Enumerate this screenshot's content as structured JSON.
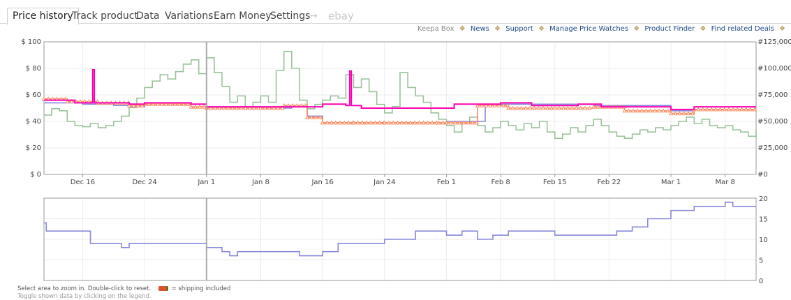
{
  "tabs": [
    {
      "label": "Price history",
      "active": true
    },
    {
      "label": "Track product"
    },
    {
      "label": "Data"
    },
    {
      "label": "Variations"
    },
    {
      "label": "Earn Money"
    },
    {
      "label": "Settings"
    },
    {
      "label": "→"
    },
    {
      "label": "ebay"
    }
  ],
  "links": {
    "keepa_box": "Keepa Box",
    "items": [
      "News",
      "Support",
      "Manage Price Watches",
      "Product Finder",
      "Find related Deals"
    ],
    "separator": "❖"
  },
  "footer": {
    "hint": "Select area to zoom in. Double-click to reset.",
    "shipping": "= shipping included",
    "hint2": "Toggle shown data by clicking on the legend."
  },
  "colors": {
    "amazon": "#e34e1a",
    "new": "#8888dd",
    "salesrank": "#8fbc8f",
    "new_3rd_party": "#ff00b4",
    "offer_count": "#8888dd",
    "grid": "#ececec",
    "axis": "#999999"
  },
  "chart_data": [
    {
      "type": "line",
      "title": "",
      "x_type": "date",
      "x_range": [
        "2023-12-11",
        "2024-03-12"
      ],
      "x_ticks": [
        "Dec 16",
        "Dec 24",
        "Jan 1",
        "Jan 8",
        "Jan 16",
        "Jan 24",
        "Feb 1",
        "Feb 8",
        "Feb 15",
        "Feb 22",
        "Mar 1",
        "Mar 8"
      ],
      "x_tick_dates": [
        "2023-12-16",
        "2023-12-24",
        "2024-01-01",
        "2024-01-08",
        "2024-01-16",
        "2024-01-24",
        "2024-02-01",
        "2024-02-08",
        "2024-02-15",
        "2024-02-22",
        "2024-03-01",
        "2024-03-08"
      ],
      "y_left": {
        "range": [
          0,
          100
        ],
        "ticks": [
          "$ 0",
          "$ 20",
          "$ 40",
          "$ 60",
          "$ 80",
          "$ 100"
        ]
      },
      "y_right": {
        "range": [
          0,
          125000
        ],
        "ticks": [
          "#0",
          "#25,000",
          "#50,000",
          "#75,000",
          "#100,000",
          "#125,000"
        ]
      },
      "marker_date": "2024-01-01",
      "grid": true,
      "series": [
        {
          "key": "salesrank",
          "axis": "right",
          "color": "#8fbc8f",
          "points": [
            [
              "2023-12-11",
              56000
            ],
            [
              "2023-12-12",
              62000
            ],
            [
              "2023-12-13",
              60000
            ],
            [
              "2023-12-14",
              50000
            ],
            [
              "2023-12-15",
              46000
            ],
            [
              "2023-12-16",
              45000
            ],
            [
              "2023-12-17",
              48000
            ],
            [
              "2023-12-18",
              44000
            ],
            [
              "2023-12-19",
              46000
            ],
            [
              "2023-12-20",
              50000
            ],
            [
              "2023-12-21",
              55000
            ],
            [
              "2023-12-22",
              63000
            ],
            [
              "2023-12-23",
              72000
            ],
            [
              "2023-12-24",
              82000
            ],
            [
              "2023-12-25",
              88000
            ],
            [
              "2023-12-26",
              94000
            ],
            [
              "2023-12-27",
              90000
            ],
            [
              "2023-12-28",
              97000
            ],
            [
              "2023-12-29",
              104000
            ],
            [
              "2023-12-30",
              108000
            ],
            [
              "2023-12-31",
              95000
            ],
            [
              "2024-01-01",
              110000
            ],
            [
              "2024-01-02",
              96000
            ],
            [
              "2024-01-03",
              83000
            ],
            [
              "2024-01-04",
              68000
            ],
            [
              "2024-01-05",
              74000
            ],
            [
              "2024-01-06",
              63000
            ],
            [
              "2024-01-07",
              68000
            ],
            [
              "2024-01-08",
              74000
            ],
            [
              "2024-01-09",
              68000
            ],
            [
              "2024-01-10",
              98000
            ],
            [
              "2024-01-11",
              116000
            ],
            [
              "2024-01-12",
              100000
            ],
            [
              "2024-01-13",
              70000
            ],
            [
              "2024-01-14",
              62000
            ],
            [
              "2024-01-15",
              66000
            ],
            [
              "2024-01-16",
              70000
            ],
            [
              "2024-01-17",
              74000
            ],
            [
              "2024-01-18",
              72000
            ],
            [
              "2024-01-19",
              94000
            ],
            [
              "2024-01-20",
              82000
            ],
            [
              "2024-01-21",
              90000
            ],
            [
              "2024-01-22",
              78000
            ],
            [
              "2024-01-23",
              66000
            ],
            [
              "2024-01-24",
              58000
            ],
            [
              "2024-01-25",
              64000
            ],
            [
              "2024-01-26",
              96000
            ],
            [
              "2024-01-27",
              82000
            ],
            [
              "2024-01-28",
              74000
            ],
            [
              "2024-01-29",
              68000
            ],
            [
              "2024-01-30",
              58000
            ],
            [
              "2024-01-31",
              52000
            ],
            [
              "2024-02-01",
              46000
            ],
            [
              "2024-02-02",
              40000
            ],
            [
              "2024-02-03",
              48000
            ],
            [
              "2024-02-04",
              54000
            ],
            [
              "2024-02-05",
              46000
            ],
            [
              "2024-02-06",
              40000
            ],
            [
              "2024-02-07",
              44000
            ],
            [
              "2024-02-08",
              50000
            ],
            [
              "2024-02-09",
              46000
            ],
            [
              "2024-02-10",
              42000
            ],
            [
              "2024-02-11",
              48000
            ],
            [
              "2024-02-12",
              44000
            ],
            [
              "2024-02-13",
              50000
            ],
            [
              "2024-02-14",
              40000
            ],
            [
              "2024-02-15",
              34000
            ],
            [
              "2024-02-16",
              38000
            ],
            [
              "2024-02-17",
              44000
            ],
            [
              "2024-02-18",
              40000
            ],
            [
              "2024-02-19",
              46000
            ],
            [
              "2024-02-20",
              52000
            ],
            [
              "2024-02-21",
              46000
            ],
            [
              "2024-02-22",
              40000
            ],
            [
              "2024-02-23",
              36000
            ],
            [
              "2024-02-24",
              34000
            ],
            [
              "2024-02-25",
              38000
            ],
            [
              "2024-02-26",
              42000
            ],
            [
              "2024-02-27",
              40000
            ],
            [
              "2024-02-28",
              44000
            ],
            [
              "2024-02-29",
              42000
            ],
            [
              "2024-03-01",
              46000
            ],
            [
              "2024-03-02",
              50000
            ],
            [
              "2024-03-03",
              54000
            ],
            [
              "2024-03-04",
              48000
            ],
            [
              "2024-03-05",
              52000
            ],
            [
              "2024-03-06",
              46000
            ],
            [
              "2024-03-07",
              44000
            ],
            [
              "2024-03-08",
              46000
            ],
            [
              "2024-03-09",
              42000
            ],
            [
              "2024-03-10",
              40000
            ],
            [
              "2024-03-11",
              36000
            ],
            [
              "2024-03-12",
              42000
            ]
          ]
        },
        {
          "key": "new",
          "axis": "left",
          "color": "#8888dd",
          "points": [
            [
              "2023-12-11",
              54
            ],
            [
              "2023-12-16",
              53
            ],
            [
              "2023-12-20",
              52
            ],
            [
              "2023-12-22",
              51
            ],
            [
              "2023-12-24",
              53
            ],
            [
              "2024-01-01",
              51
            ],
            [
              "2024-01-08",
              50
            ],
            [
              "2024-01-12",
              52
            ],
            [
              "2024-01-14",
              44
            ],
            [
              "2024-01-16",
              39
            ],
            [
              "2024-01-20",
              39
            ],
            [
              "2024-01-24",
              39
            ],
            [
              "2024-01-31",
              39
            ],
            [
              "2024-02-01",
              40
            ],
            [
              "2024-02-06",
              53
            ],
            [
              "2024-02-20",
              52
            ],
            [
              "2024-03-01",
              48
            ],
            [
              "2024-03-04",
              49
            ],
            [
              "2024-03-12",
              49
            ]
          ]
        },
        {
          "key": "amazon",
          "axis": "left",
          "color": "#ff8a5c",
          "points": [
            [
              "2023-12-11",
              57
            ],
            [
              "2023-12-14",
              55
            ],
            [
              "2023-12-18",
              54
            ],
            [
              "2023-12-22",
              52
            ],
            [
              "2023-12-24",
              53
            ],
            [
              "2023-12-30",
              51
            ],
            [
              "2024-01-01",
              50
            ],
            [
              "2024-01-08",
              50
            ],
            [
              "2024-01-11",
              52
            ],
            [
              "2024-01-14",
              43
            ],
            [
              "2024-01-16",
              39
            ],
            [
              "2024-01-20",
              39
            ],
            [
              "2024-01-24",
              39
            ],
            [
              "2024-01-31",
              39
            ],
            [
              "2024-02-01",
              39
            ],
            [
              "2024-02-05",
              52
            ],
            [
              "2024-02-09",
              50
            ],
            [
              "2024-02-15",
              50
            ],
            [
              "2024-02-20",
              51
            ],
            [
              "2024-02-24",
              48
            ],
            [
              "2024-03-01",
              46
            ],
            [
              "2024-03-04",
              49
            ],
            [
              "2024-03-12",
              49
            ]
          ]
        },
        {
          "key": "new_3rd_party",
          "axis": "left",
          "color": "#ff00b4",
          "points": [
            [
              "2023-12-11",
              56
            ],
            [
              "2023-12-15",
              54
            ],
            [
              "2023-12-17",
              54
            ],
            [
              "2023-12-17.3",
              79
            ],
            [
              "2023-12-17.5",
              54
            ],
            [
              "2023-12-22",
              53
            ],
            [
              "2023-12-24",
              54
            ],
            [
              "2023-12-30",
              53
            ],
            [
              "2024-01-01",
              51
            ],
            [
              "2024-01-08",
              51
            ],
            [
              "2024-01-14",
              51
            ],
            [
              "2024-01-16",
              53
            ],
            [
              "2024-01-19",
              52
            ],
            [
              "2024-01-19.5",
              78
            ],
            [
              "2024-01-19.7",
              52
            ],
            [
              "2024-01-21",
              50
            ],
            [
              "2024-02-01",
              50
            ],
            [
              "2024-02-02",
              53
            ],
            [
              "2024-02-08",
              54
            ],
            [
              "2024-02-12",
              52
            ],
            [
              "2024-02-18",
              53
            ],
            [
              "2024-02-21",
              51
            ],
            [
              "2024-02-25",
              51
            ],
            [
              "2024-03-01",
              49
            ],
            [
              "2024-03-04",
              51
            ],
            [
              "2024-03-12",
              51
            ]
          ]
        }
      ]
    },
    {
      "type": "line",
      "title": "",
      "x_type": "date",
      "x_range": [
        "2023-12-11",
        "2024-03-12"
      ],
      "y_right": {
        "range": [
          0,
          20
        ],
        "ticks": [
          "0",
          "5",
          "10",
          "15",
          "20"
        ]
      },
      "marker_date": "2024-01-01",
      "grid": true,
      "series": [
        {
          "key": "offer_count",
          "axis": "right",
          "color": "#8888dd",
          "points": [
            [
              "2023-12-11",
              14
            ],
            [
              "2023-12-11.3",
              12
            ],
            [
              "2023-12-16",
              12
            ],
            [
              "2023-12-17",
              9
            ],
            [
              "2023-12-20",
              9
            ],
            [
              "2023-12-21",
              8
            ],
            [
              "2023-12-22",
              9
            ],
            [
              "2023-12-28",
              9
            ],
            [
              "2024-01-01",
              8
            ],
            [
              "2024-01-03",
              7
            ],
            [
              "2024-01-04",
              6
            ],
            [
              "2024-01-05",
              7
            ],
            [
              "2024-01-11",
              7
            ],
            [
              "2024-01-13",
              6
            ],
            [
              "2024-01-16",
              7
            ],
            [
              "2024-01-18",
              9
            ],
            [
              "2024-01-22",
              9
            ],
            [
              "2024-01-24",
              10
            ],
            [
              "2024-01-28",
              12
            ],
            [
              "2024-02-01",
              11
            ],
            [
              "2024-02-03",
              12
            ],
            [
              "2024-02-05",
              10
            ],
            [
              "2024-02-07",
              11
            ],
            [
              "2024-02-09",
              12
            ],
            [
              "2024-02-13",
              12
            ],
            [
              "2024-02-15",
              11
            ],
            [
              "2024-02-18",
              11
            ],
            [
              "2024-02-21",
              11
            ],
            [
              "2024-02-23",
              12
            ],
            [
              "2024-02-25",
              13
            ],
            [
              "2024-02-27",
              15
            ],
            [
              "2024-03-01",
              17
            ],
            [
              "2024-03-04",
              18
            ],
            [
              "2024-03-08",
              19
            ],
            [
              "2024-03-09",
              18
            ],
            [
              "2024-03-12",
              18
            ]
          ]
        }
      ]
    }
  ]
}
